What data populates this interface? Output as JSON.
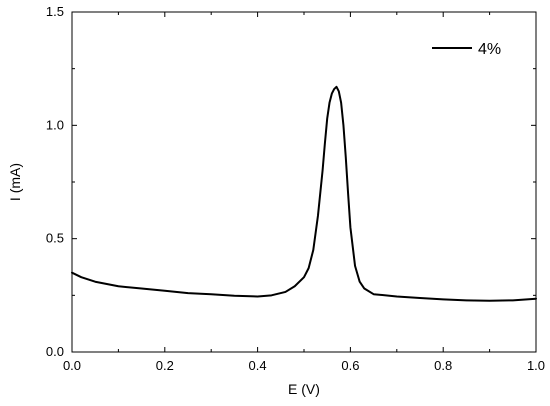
{
  "chart_data": {
    "type": "line",
    "title": "",
    "xlabel": "E (V)",
    "ylabel": "I (mA)",
    "xlim": [
      0.0,
      1.0
    ],
    "ylim": [
      0.0,
      1.5
    ],
    "x_ticks": [
      0.0,
      0.2,
      0.4,
      0.6,
      0.8,
      1.0
    ],
    "x_tick_labels": [
      "0.0",
      "0.2",
      "0.4",
      "0.6",
      "0.8",
      "1.0"
    ],
    "y_ticks": [
      0.0,
      0.5,
      1.0,
      1.5
    ],
    "y_tick_labels": [
      "0.0",
      "0.5",
      "1.0",
      "1.5"
    ],
    "grid": false,
    "legend_position": "top-right",
    "series": [
      {
        "name": "4%",
        "color": "#000000",
        "x": [
          0.0,
          0.02,
          0.05,
          0.1,
          0.15,
          0.2,
          0.25,
          0.3,
          0.35,
          0.4,
          0.43,
          0.46,
          0.48,
          0.5,
          0.51,
          0.52,
          0.53,
          0.54,
          0.545,
          0.55,
          0.555,
          0.56,
          0.565,
          0.57,
          0.575,
          0.58,
          0.585,
          0.59,
          0.595,
          0.6,
          0.61,
          0.62,
          0.63,
          0.65,
          0.7,
          0.75,
          0.8,
          0.85,
          0.9,
          0.95,
          1.0
        ],
        "y": [
          0.35,
          0.33,
          0.31,
          0.29,
          0.28,
          0.27,
          0.26,
          0.255,
          0.248,
          0.245,
          0.25,
          0.265,
          0.29,
          0.33,
          0.37,
          0.45,
          0.6,
          0.8,
          0.92,
          1.03,
          1.1,
          1.14,
          1.16,
          1.17,
          1.15,
          1.1,
          1.0,
          0.86,
          0.7,
          0.55,
          0.38,
          0.31,
          0.28,
          0.255,
          0.245,
          0.238,
          0.232,
          0.228,
          0.226,
          0.228,
          0.235
        ]
      }
    ]
  }
}
